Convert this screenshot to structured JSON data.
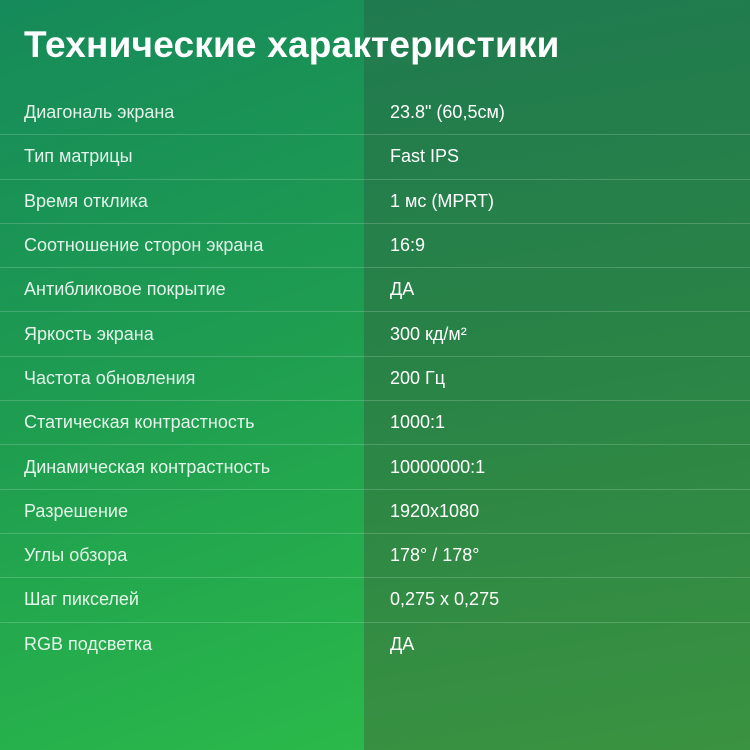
{
  "title": "Технические характеристики",
  "colors": {
    "background_left": "#1f9e50",
    "background_right": "#2a8446",
    "text": "#ffffff"
  },
  "specs": [
    {
      "label": "Диагональ экрана",
      "value": "23.8\" (60,5см)"
    },
    {
      "label": "Тип матрицы",
      "value": "Fast IPS"
    },
    {
      "label": "Время отклика",
      "value": "1 мс (MPRT)"
    },
    {
      "label": "Соотношение сторон экрана",
      "value": "16:9"
    },
    {
      "label": "Антибликовое покрытие",
      "value": "ДА"
    },
    {
      "label": "Яркость экрана",
      "value": "300 кд/м²"
    },
    {
      "label": "Частота обновления",
      "value": "200 Гц"
    },
    {
      "label": "Статическая контрастность",
      "value": "1000:1"
    },
    {
      "label": "Динамическая контрастность",
      "value": "10000000:1"
    },
    {
      "label": "Разрешение",
      "value": "1920x1080"
    },
    {
      "label": "Углы обзора",
      "value": "178° / 178°"
    },
    {
      "label": "Шаг пикселей",
      "value": "0,275 x 0,275"
    },
    {
      "label": "RGB подсветка",
      "value": "ДА"
    }
  ]
}
